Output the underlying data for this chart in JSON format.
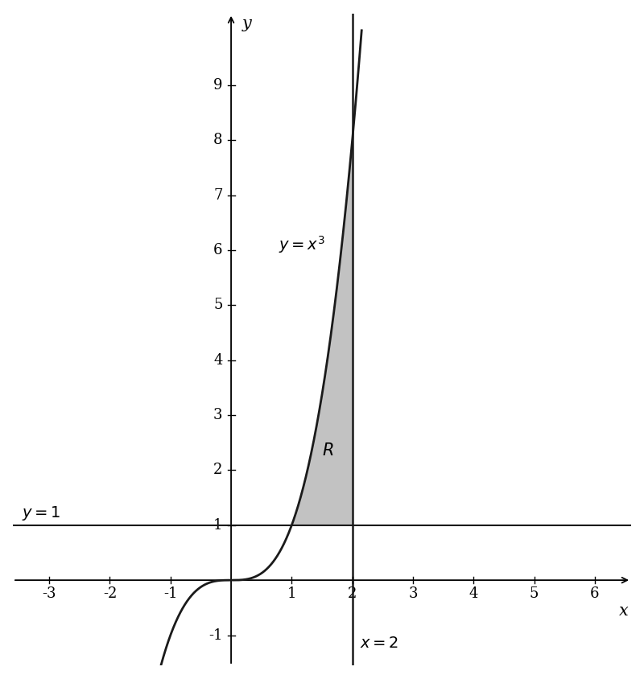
{
  "xlabel": "x",
  "ylabel": "y",
  "xlim": [
    -3.6,
    6.6
  ],
  "ylim": [
    -1.55,
    10.3
  ],
  "xticks": [
    -3,
    -2,
    -1,
    1,
    2,
    3,
    4,
    5,
    6
  ],
  "yticks": [
    -1,
    1,
    2,
    3,
    4,
    5,
    6,
    7,
    8,
    9
  ],
  "curve_color": "#1a1a1a",
  "fill_color": "#b8b8b8",
  "fill_alpha": 0.85,
  "line_color": "#1a1a1a",
  "background_color": "#ffffff",
  "grid_color": "#cccccc",
  "figsize": [
    8.0,
    8.44
  ],
  "dpi": 100,
  "tick_label_fontsize": 13,
  "axis_label_fontsize": 15,
  "annotation_fontsize": 14
}
